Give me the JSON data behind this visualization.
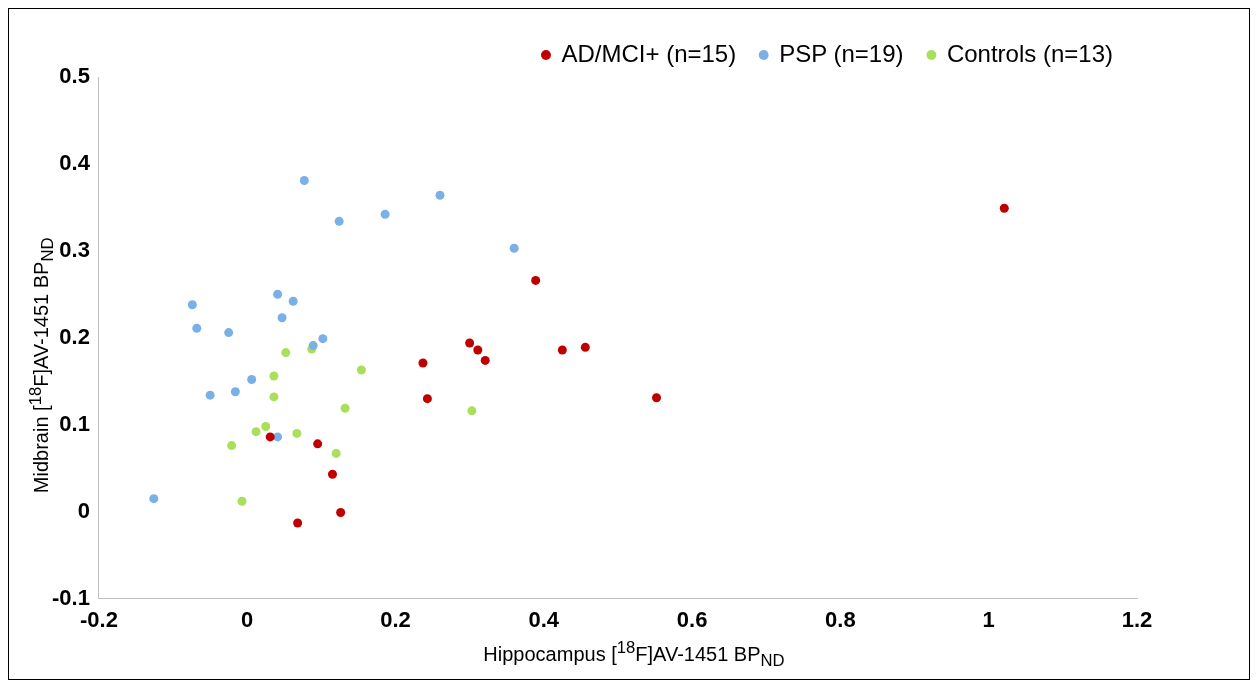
{
  "chart_data": {
    "type": "scatter",
    "xlabel": "Hippocampus [$^{18}$F]AV-1451 BP$_{ND}$",
    "ylabel": "Midbrain [$^{18}$F]AV-1451 BP$_{ND}$",
    "xlim": [
      -0.2,
      1.2
    ],
    "xticks": [
      -0.2,
      0,
      0.2,
      0.4,
      0.6,
      0.8,
      1,
      1.2
    ],
    "ylim": [
      -0.1,
      0.5
    ],
    "yticks": [
      -0.1,
      0,
      0.1,
      0.2,
      0.3,
      0.4,
      0.5
    ],
    "grid": false,
    "legend": "top right",
    "marker": "circle",
    "series": [
      {
        "name": "AD/MCI+ (n=15)",
        "color": "#c00000",
        "x": [
          0.031,
          0.095,
          0.115,
          0.126,
          0.068,
          0.237,
          0.243,
          0.3,
          0.311,
          0.321,
          0.389,
          0.425,
          0.456,
          0.552,
          1.021
        ],
        "values": [
          0.086,
          0.078,
          0.043,
          -0.001,
          -0.013,
          0.171,
          0.13,
          0.194,
          0.186,
          0.174,
          0.266,
          0.186,
          0.189,
          0.131,
          0.349
        ]
      },
      {
        "name": "PSP (n=19)",
        "color": "#7ab0e6",
        "x": [
          -0.126,
          -0.074,
          -0.068,
          -0.025,
          -0.05,
          -0.016,
          0.006,
          0.041,
          0.047,
          0.062,
          0.102,
          0.041,
          0.077,
          0.124,
          0.186,
          0.26,
          0.36,
          0.089
        ],
        "values": [
          0.015,
          0.238,
          0.211,
          0.206,
          0.134,
          0.138,
          0.152,
          0.25,
          0.223,
          0.242,
          0.199,
          0.086,
          0.381,
          0.334,
          0.342,
          0.364,
          0.303,
          0.191
        ]
      },
      {
        "name": "Controls (n=13)",
        "color": "#a8e05a",
        "x": [
          0.052,
          0.087,
          0.154,
          0.036,
          0.036,
          0.132,
          0.012,
          0.025,
          0.067,
          -0.021,
          0.12,
          -0.007,
          0.303
        ],
        "values": [
          0.183,
          0.187,
          0.163,
          0.156,
          0.132,
          0.119,
          0.092,
          0.098,
          0.09,
          0.076,
          0.067,
          0.012,
          0.116
        ]
      }
    ]
  }
}
